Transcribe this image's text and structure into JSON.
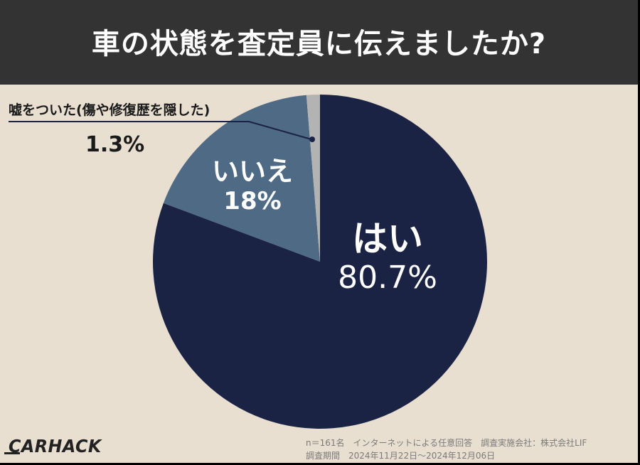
{
  "header": {
    "title": "車の状態を査定員に伝えましたか?"
  },
  "chart_data": {
    "type": "pie",
    "title": "車の状態を査定員に伝えましたか?",
    "categories": [
      "はい",
      "いいえ",
      "嘘をついた(傷や修復歴を隠した)"
    ],
    "values": [
      80.7,
      18,
      1.3
    ],
    "unit": "%",
    "colors": [
      "#1b2345",
      "#4e6a85",
      "#b3b3b3"
    ],
    "start_angle": "12 o'clock, clockwise",
    "labels": [
      {
        "name": "はい",
        "value_label": "80.7%"
      },
      {
        "name": "いいえ",
        "value_label": "18%"
      },
      {
        "name": "嘘をついた(傷や修復歴を隠した)",
        "value_label": "1.3%"
      }
    ]
  },
  "slices": {
    "yes": {
      "name": "はい",
      "pct": "80.7%"
    },
    "no": {
      "name": "いいえ",
      "pct": "18%"
    },
    "lied": {
      "name": "嘘をついた(傷や修復歴を隠した)",
      "pct": "1.3%"
    }
  },
  "colors": {
    "background": "#e8dfd0",
    "header": "#333333",
    "yes": "#1b2345",
    "no": "#4e6a85",
    "lied": "#b3b3b3"
  },
  "footer": {
    "logo": "CARHACK",
    "note_line1": "n＝161名　インターネットによる任意回答　調査実施会社：株式会社LIF",
    "note_line2": "調査期間　2024年11月22日～2024年12月06日"
  }
}
